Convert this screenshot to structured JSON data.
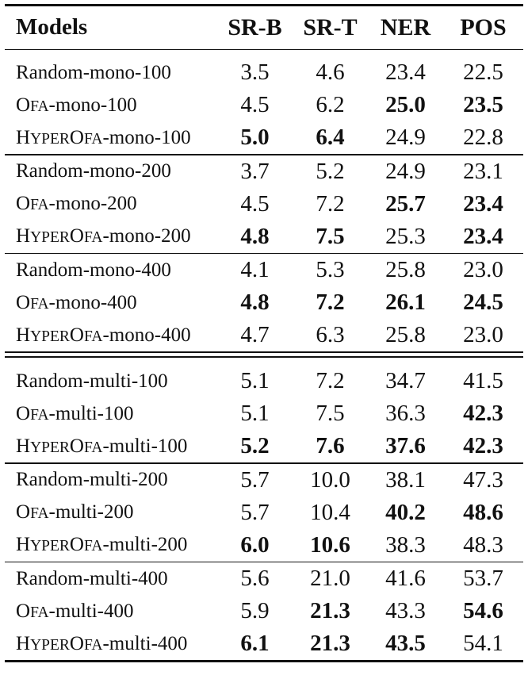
{
  "header": {
    "models": "Models",
    "srb": "SR-B",
    "srt": "SR-T",
    "ner": "NER",
    "pos": "POS"
  },
  "sections": [
    {
      "groups": [
        {
          "rows": [
            {
              "name_parts": [
                {
                  "t": "Random-mono-100"
                }
              ],
              "vals": [
                "3.5",
                "4.6",
                "23.4",
                "22.5"
              ],
              "bold": [
                false,
                false,
                false,
                false
              ]
            },
            {
              "name_parts": [
                {
                  "t": "O"
                },
                {
                  "t": "FA",
                  "sc": true
                },
                {
                  "t": "-mono-100"
                }
              ],
              "vals": [
                "4.5",
                "6.2",
                "25.0",
                "23.5"
              ],
              "bold": [
                false,
                false,
                true,
                true
              ]
            },
            {
              "name_parts": [
                {
                  "t": "H"
                },
                {
                  "t": "YPER",
                  "sc": true
                },
                {
                  "t": "O"
                },
                {
                  "t": "FA",
                  "sc": true
                },
                {
                  "t": "-mono-100"
                }
              ],
              "vals": [
                "5.0",
                "6.4",
                "24.9",
                "22.8"
              ],
              "bold": [
                true,
                true,
                false,
                false
              ]
            }
          ]
        },
        {
          "rows": [
            {
              "name_parts": [
                {
                  "t": "Random-mono-200"
                }
              ],
              "vals": [
                "3.7",
                "5.2",
                "24.9",
                "23.1"
              ],
              "bold": [
                false,
                false,
                false,
                false
              ]
            },
            {
              "name_parts": [
                {
                  "t": "O"
                },
                {
                  "t": "FA",
                  "sc": true
                },
                {
                  "t": "-mono-200"
                }
              ],
              "vals": [
                "4.5",
                "7.2",
                "25.7",
                "23.4"
              ],
              "bold": [
                false,
                false,
                true,
                true
              ]
            },
            {
              "name_parts": [
                {
                  "t": "H"
                },
                {
                  "t": "YPER",
                  "sc": true
                },
                {
                  "t": "O"
                },
                {
                  "t": "FA",
                  "sc": true
                },
                {
                  "t": "-mono-200"
                }
              ],
              "vals": [
                "4.8",
                "7.5",
                "25.3",
                "23.4"
              ],
              "bold": [
                true,
                true,
                false,
                true
              ]
            }
          ]
        },
        {
          "rows": [
            {
              "name_parts": [
                {
                  "t": "Random-mono-400"
                }
              ],
              "vals": [
                "4.1",
                "5.3",
                "25.8",
                "23.0"
              ],
              "bold": [
                false,
                false,
                false,
                false
              ]
            },
            {
              "name_parts": [
                {
                  "t": "O"
                },
                {
                  "t": "FA",
                  "sc": true
                },
                {
                  "t": "-mono-400"
                }
              ],
              "vals": [
                "4.8",
                "7.2",
                "26.1",
                "24.5"
              ],
              "bold": [
                true,
                true,
                true,
                true
              ]
            },
            {
              "name_parts": [
                {
                  "t": "H"
                },
                {
                  "t": "YPER",
                  "sc": true
                },
                {
                  "t": "O"
                },
                {
                  "t": "FA",
                  "sc": true
                },
                {
                  "t": "-mono-400"
                }
              ],
              "vals": [
                "4.7",
                "6.3",
                "25.8",
                "23.0"
              ],
              "bold": [
                false,
                false,
                false,
                false
              ]
            }
          ]
        }
      ]
    },
    {
      "groups": [
        {
          "rows": [
            {
              "name_parts": [
                {
                  "t": "Random-multi-100"
                }
              ],
              "vals": [
                "5.1",
                "7.2",
                "34.7",
                "41.5"
              ],
              "bold": [
                false,
                false,
                false,
                false
              ]
            },
            {
              "name_parts": [
                {
                  "t": "O"
                },
                {
                  "t": "FA",
                  "sc": true
                },
                {
                  "t": "-multi-100"
                }
              ],
              "vals": [
                "5.1",
                "7.5",
                "36.3",
                "42.3"
              ],
              "bold": [
                false,
                false,
                false,
                true
              ]
            },
            {
              "name_parts": [
                {
                  "t": "H"
                },
                {
                  "t": "YPER",
                  "sc": true
                },
                {
                  "t": "O"
                },
                {
                  "t": "FA",
                  "sc": true
                },
                {
                  "t": "-multi-100"
                }
              ],
              "vals": [
                "5.2",
                "7.6",
                "37.6",
                "42.3"
              ],
              "bold": [
                true,
                true,
                true,
                true
              ]
            }
          ]
        },
        {
          "rows": [
            {
              "name_parts": [
                {
                  "t": "Random-multi-200"
                }
              ],
              "vals": [
                "5.7",
                "10.0",
                "38.1",
                "47.3"
              ],
              "bold": [
                false,
                false,
                false,
                false
              ]
            },
            {
              "name_parts": [
                {
                  "t": "O"
                },
                {
                  "t": "FA",
                  "sc": true
                },
                {
                  "t": "-multi-200"
                }
              ],
              "vals": [
                "5.7",
                "10.4",
                "40.2",
                "48.6"
              ],
              "bold": [
                false,
                false,
                true,
                true
              ]
            },
            {
              "name_parts": [
                {
                  "t": "H"
                },
                {
                  "t": "YPER",
                  "sc": true
                },
                {
                  "t": "O"
                },
                {
                  "t": "FA",
                  "sc": true
                },
                {
                  "t": "-multi-200"
                }
              ],
              "vals": [
                "6.0",
                "10.6",
                "38.3",
                "48.3"
              ],
              "bold": [
                true,
                true,
                false,
                false
              ]
            }
          ]
        },
        {
          "rows": [
            {
              "name_parts": [
                {
                  "t": "Random-multi-400"
                }
              ],
              "vals": [
                "5.6",
                "21.0",
                "41.6",
                "53.7"
              ],
              "bold": [
                false,
                false,
                false,
                false
              ]
            },
            {
              "name_parts": [
                {
                  "t": "O"
                },
                {
                  "t": "FA",
                  "sc": true
                },
                {
                  "t": "-multi-400"
                }
              ],
              "vals": [
                "5.9",
                "21.3",
                "43.3",
                "54.6"
              ],
              "bold": [
                false,
                true,
                false,
                true
              ]
            },
            {
              "name_parts": [
                {
                  "t": "H"
                },
                {
                  "t": "YPER",
                  "sc": true
                },
                {
                  "t": "O"
                },
                {
                  "t": "FA",
                  "sc": true
                },
                {
                  "t": "-multi-400"
                }
              ],
              "vals": [
                "6.1",
                "21.3",
                "43.5",
                "54.1"
              ],
              "bold": [
                true,
                true,
                true,
                false
              ]
            }
          ]
        }
      ]
    }
  ]
}
